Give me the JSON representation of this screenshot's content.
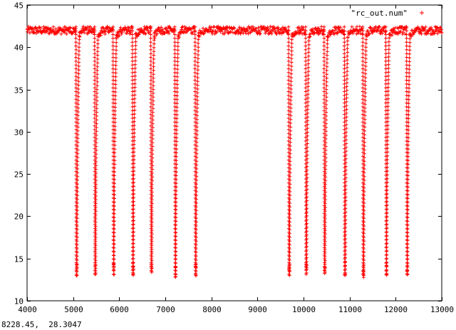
{
  "chart_data": {
    "type": "scatter",
    "xlim": [
      4000,
      13000
    ],
    "ylim": [
      10,
      45
    ],
    "x_ticks": [
      4000,
      5000,
      6000,
      7000,
      8000,
      9000,
      10000,
      11000,
      12000,
      13000
    ],
    "y_ticks": [
      10,
      15,
      20,
      25,
      30,
      35,
      40,
      45
    ],
    "grid": false,
    "legend_position": "top-right",
    "series": [
      {
        "name": "\"rc_out.num\"",
        "marker": "plus",
        "color": "#ff0000",
        "x_start": 4000,
        "x_end": 13000,
        "x_step": 10,
        "baseline_y": 42.0,
        "dips": [
          {
            "center_x": 5075,
            "min_y": 12.5
          },
          {
            "center_x": 5480,
            "min_y": 12.9
          },
          {
            "center_x": 5880,
            "min_y": 12.6
          },
          {
            "center_x": 6300,
            "min_y": 12.7
          },
          {
            "center_x": 6700,
            "min_y": 12.9
          },
          {
            "center_x": 7220,
            "min_y": 12.6
          },
          {
            "center_x": 7660,
            "min_y": 12.5
          },
          {
            "center_x": 9690,
            "min_y": 12.5
          },
          {
            "center_x": 10060,
            "min_y": 12.8
          },
          {
            "center_x": 10460,
            "min_y": 12.9
          },
          {
            "center_x": 10900,
            "min_y": 12.8
          },
          {
            "center_x": 11300,
            "min_y": 12.5
          },
          {
            "center_x": 11800,
            "min_y": 12.7
          },
          {
            "center_x": 12250,
            "min_y": 12.6
          }
        ]
      }
    ]
  },
  "status_bar": {
    "cursor_text": "8228.45,  28.3047"
  }
}
